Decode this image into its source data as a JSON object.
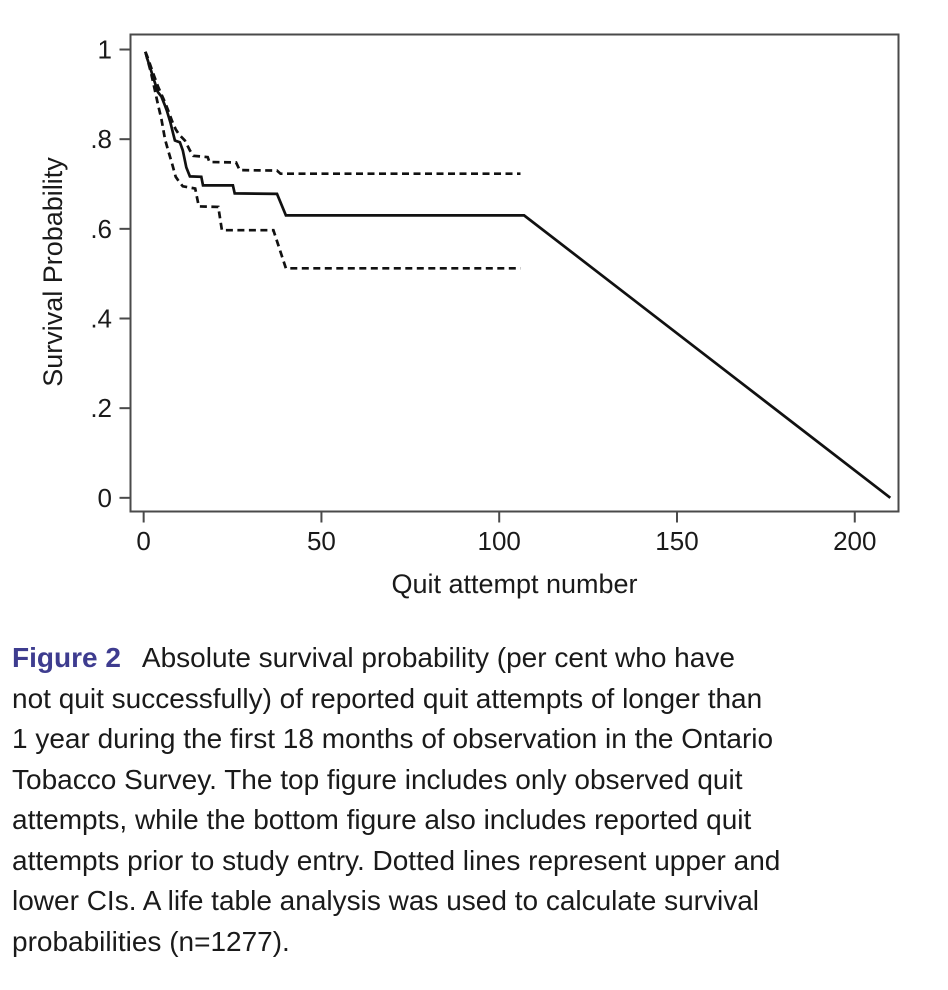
{
  "figure": {
    "label": "Figure 2",
    "label_color": "#3e3c8f",
    "caption_lines": [
      "Absolute survival probability (per cent who have",
      "not quit successfully) of reported quit attempts of longer than",
      "1 year during the first 18 months of observation in the Ontario",
      "Tobacco Survey. The top figure includes only observed quit",
      "attempts, while the bottom figure also includes reported quit",
      "attempts prior to study entry. Dotted lines represent upper and",
      "lower CIs. A life table analysis was used to calculate survival",
      "probabilities (n=1277)."
    ]
  },
  "chart_data": {
    "type": "line",
    "title": "",
    "xlabel": "Quit attempt number",
    "ylabel": "Survival Probability",
    "xlim": [
      -3.7,
      212.3
    ],
    "ylim": [
      -0.0305,
      1.0335
    ],
    "x_ticks": [
      0,
      50,
      100,
      150,
      200
    ],
    "x_tick_labels": [
      "0",
      "50",
      "100",
      "150",
      "200"
    ],
    "y_ticks": [
      1,
      0.8,
      0.6,
      0.4,
      0.2,
      0
    ],
    "y_tick_labels": [
      "1",
      ".8",
      ".6",
      ".4",
      ".2",
      "0"
    ],
    "grid": false,
    "legend": "none",
    "frame": true,
    "axis_color": "#4a4a4a",
    "line_color": "#111111",
    "series": [
      {
        "name": "survival-estimate",
        "style": "solid",
        "points": [
          [
            0.5,
            0.995
          ],
          [
            1,
            0.98
          ],
          [
            2,
            0.955
          ],
          [
            3,
            0.93
          ],
          [
            4,
            0.905
          ],
          [
            5,
            0.895
          ],
          [
            6,
            0.875
          ],
          [
            6.5,
            0.864
          ],
          [
            7.5,
            0.838
          ],
          [
            8.3,
            0.812
          ],
          [
            8.8,
            0.797
          ],
          [
            10.2,
            0.793
          ],
          [
            11,
            0.775
          ],
          [
            12,
            0.737
          ],
          [
            13,
            0.717
          ],
          [
            16.2,
            0.716
          ],
          [
            16.7,
            0.697
          ],
          [
            25.1,
            0.697
          ],
          [
            25.6,
            0.679
          ],
          [
            37.5,
            0.678
          ],
          [
            40,
            0.63
          ],
          [
            107,
            0.63
          ],
          [
            210,
            0
          ]
        ]
      },
      {
        "name": "upper-ci",
        "style": "dashed",
        "points": [
          [
            0.5,
            0.995
          ],
          [
            1,
            0.985
          ],
          [
            2,
            0.962
          ],
          [
            3,
            0.94
          ],
          [
            4,
            0.918
          ],
          [
            5,
            0.9
          ],
          [
            6,
            0.882
          ],
          [
            7,
            0.862
          ],
          [
            8,
            0.84
          ],
          [
            9,
            0.822
          ],
          [
            10,
            0.81
          ],
          [
            11.6,
            0.797
          ],
          [
            13,
            0.775
          ],
          [
            14,
            0.763
          ],
          [
            18,
            0.76
          ],
          [
            18.5,
            0.749
          ],
          [
            26,
            0.748
          ],
          [
            27,
            0.731
          ],
          [
            37.5,
            0.73
          ],
          [
            38.5,
            0.723
          ],
          [
            106,
            0.723
          ]
        ]
      },
      {
        "name": "lower-ci",
        "style": "dashed",
        "points": [
          [
            0.5,
            0.995
          ],
          [
            1,
            0.98
          ],
          [
            2,
            0.95
          ],
          [
            3,
            0.915
          ],
          [
            4,
            0.878
          ],
          [
            5,
            0.845
          ],
          [
            6,
            0.8
          ],
          [
            7,
            0.772
          ],
          [
            8,
            0.745
          ],
          [
            9,
            0.716
          ],
          [
            10,
            0.705
          ],
          [
            11,
            0.695
          ],
          [
            14.5,
            0.69
          ],
          [
            15.5,
            0.65
          ],
          [
            21,
            0.649
          ],
          [
            22,
            0.597
          ],
          [
            36.5,
            0.597
          ],
          [
            40,
            0.512
          ],
          [
            106,
            0.512
          ]
        ]
      }
    ]
  }
}
